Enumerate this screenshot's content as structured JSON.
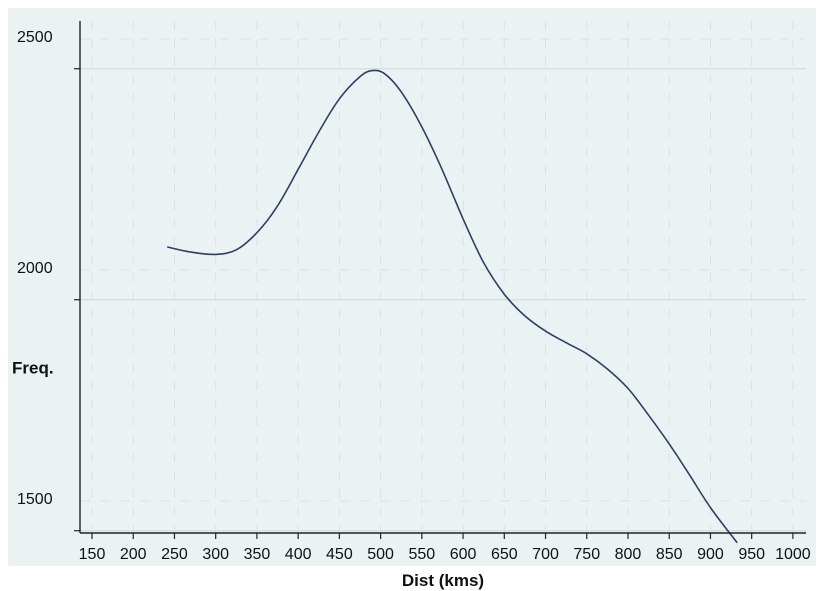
{
  "chart_data": {
    "type": "line",
    "title": "",
    "xlabel": "Dist (kms)",
    "ylabel": "Freq.",
    "xlim": [
      150,
      1000
    ],
    "ylim": [
      1450,
      2500
    ],
    "x_ticks": [
      150,
      200,
      250,
      300,
      350,
      400,
      450,
      500,
      550,
      600,
      650,
      700,
      750,
      800,
      850,
      900,
      950,
      1000
    ],
    "x_tick_labels": [
      "150",
      "200",
      "250",
      "300",
      "350",
      "400",
      "450",
      "500",
      "550",
      "600",
      "650",
      "700",
      "750",
      "800",
      "850",
      "900",
      "950",
      "1000"
    ],
    "y_label_ticks": [
      1500,
      2000,
      2500
    ],
    "y_tick_labels": [
      "1500",
      "2000",
      "2500"
    ],
    "y_mark_ticks": [
      1440,
      1940,
      2440
    ],
    "grid": true,
    "legend": "none",
    "colors": {
      "plot_background": "#eaf2f3",
      "panel_background": "#ffffff",
      "line": "#2f3f63",
      "axis": "#222222",
      "grid_major": "#d4dcde",
      "grid_minor": "#dbe2e4"
    },
    "series": [
      {
        "x": [
          242,
          270,
          300,
          325,
          350,
          375,
          400,
          425,
          450,
          475,
          490,
          505,
          525,
          550,
          575,
          600,
          625,
          650,
          675,
          700,
          725,
          750,
          775,
          800,
          825,
          850,
          875,
          900,
          932
        ],
        "y": [
          2054,
          2043,
          2038,
          2048,
          2085,
          2143,
          2222,
          2303,
          2375,
          2423,
          2436,
          2429,
          2390,
          2314,
          2220,
          2115,
          2020,
          1952,
          1905,
          1872,
          1847,
          1823,
          1790,
          1748,
          1690,
          1628,
          1560,
          1490,
          1415
        ]
      }
    ]
  }
}
